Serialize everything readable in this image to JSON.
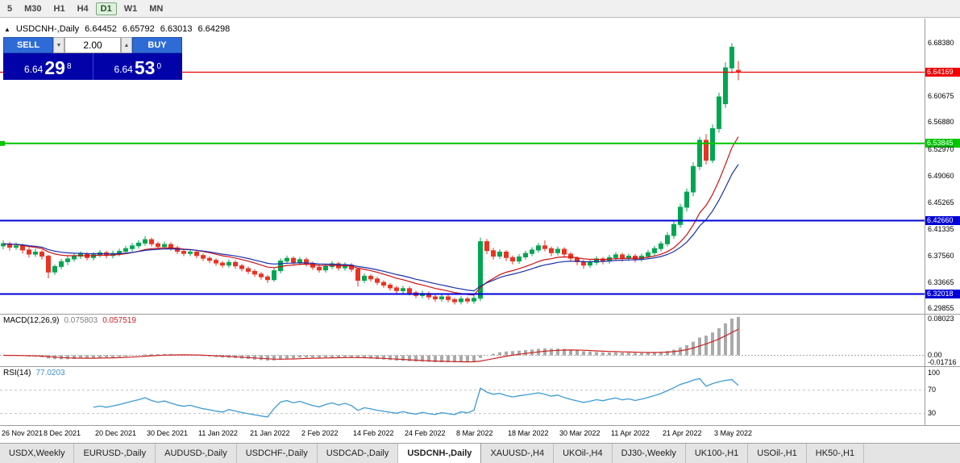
{
  "toolbar": {
    "timeframes": [
      {
        "label": "5",
        "active": false
      },
      {
        "label": "M30",
        "active": false
      },
      {
        "label": "H1",
        "active": false
      },
      {
        "label": "H4",
        "active": false
      },
      {
        "label": "D1",
        "active": true
      },
      {
        "label": "W1",
        "active": false
      },
      {
        "label": "MN",
        "active": false
      }
    ]
  },
  "chart_header": {
    "collapse_icon": "▲",
    "symbol": "USDCNH-,Daily",
    "open": "6.64452",
    "high": "6.65792",
    "low": "6.63013",
    "close": "6.64298"
  },
  "trade_widget": {
    "sell_label": "SELL",
    "buy_label": "BUY",
    "volume": "2.00",
    "step_down_icon": "▼",
    "step_up_icon": "▲",
    "sell_price": {
      "main": "6.64",
      "pips": "29",
      "sup": "8"
    },
    "buy_price": {
      "main": "6.64",
      "pips": "53",
      "sup": "0"
    }
  },
  "price_axis": [
    {
      "text": "6.68380",
      "price": 6.6838,
      "style": "plain"
    },
    {
      "text": "6.64169",
      "price": 6.64169,
      "style": "red"
    },
    {
      "text": "6.60675",
      "price": 6.60675,
      "style": "plain"
    },
    {
      "text": "6.56880",
      "price": 6.5688,
      "style": "plain"
    },
    {
      "text": "6.53845",
      "price": 6.53845,
      "style": "green"
    },
    {
      "text": "6.52970",
      "price": 6.5297,
      "style": "plain"
    },
    {
      "text": "6.49060",
      "price": 6.4906,
      "style": "plain"
    },
    {
      "text": "6.45265",
      "price": 6.45265,
      "style": "plain"
    },
    {
      "text": "6.42660",
      "price": 6.4266,
      "style": "blue"
    },
    {
      "text": "6.41335",
      "price": 6.41335,
      "style": "plain"
    },
    {
      "text": "6.37560",
      "price": 6.3756,
      "style": "plain"
    },
    {
      "text": "6.33665",
      "price": 6.33665,
      "style": "plain"
    },
    {
      "text": "6.32018",
      "price": 6.32018,
      "style": "blue"
    },
    {
      "text": "6.29855",
      "price": 6.29855,
      "style": "plain"
    }
  ],
  "hlines": [
    {
      "price": 6.64169,
      "color": "#f00000",
      "width": 1.2
    },
    {
      "price": 6.53845,
      "color": "#00c400",
      "width": 2
    },
    {
      "price": 6.4266,
      "color": "#0000d8",
      "width": 2
    },
    {
      "price": 6.32018,
      "color": "#0000d8",
      "width": 2
    }
  ],
  "indicators": {
    "macd": {
      "name": "MACD(12,26,9)",
      "value1": "0.075803",
      "value2": "0.057519",
      "axis_labels": [
        {
          "text": "0.08023",
          "value": 0.08023
        },
        {
          "text": "0.00",
          "value": 0
        },
        {
          "text": "-0.01716",
          "value": -0.01716
        }
      ],
      "fast": 12,
      "slow": 26,
      "signal": 9,
      "histogram_color": "#aaaaaa",
      "signal_color": "#cc2222"
    },
    "rsi": {
      "name": "RSI(14)",
      "value": "77.0203",
      "period": 14,
      "axis_labels": [
        {
          "text": "100",
          "value": 100
        },
        {
          "text": "70",
          "value": 70
        },
        {
          "text": "30",
          "value": 30
        }
      ],
      "levels": [
        70,
        30
      ],
      "line_color": "#3d9bd5"
    }
  },
  "time_axis": {
    "labels": [
      "26 Nov 2021",
      "8 Dec 2021",
      "20 Dec 2021",
      "30 Dec 2021",
      "11 Jan 2022",
      "21 Jan 2022",
      "2 Feb 2022",
      "14 Feb 2022",
      "24 Feb 2022",
      "8 Mar 2022",
      "18 Mar 2022",
      "30 Mar 2022",
      "11 Apr 2022",
      "21 Apr 2022",
      "3 May 2022"
    ],
    "first_candle_index": 2,
    "candle_step": 8
  },
  "tabs": [
    {
      "label": "USDX,Weekly",
      "active": false
    },
    {
      "label": "EURUSD-,Daily",
      "active": false
    },
    {
      "label": "AUDUSD-,Daily",
      "active": false
    },
    {
      "label": "USDCHF-,Daily",
      "active": false
    },
    {
      "label": "USDCAD-,Daily",
      "active": false
    },
    {
      "label": "USDCNH-,Daily",
      "active": true
    },
    {
      "label": "XAUUSD-,H4",
      "active": false
    },
    {
      "label": "UKOil-,H4",
      "active": false
    },
    {
      "label": "DJ30-,Weekly",
      "active": false
    },
    {
      "label": "UK100-,H1",
      "active": false
    },
    {
      "label": "USOil-,H1",
      "active": false
    },
    {
      "label": "HK50-,H1",
      "active": false
    }
  ],
  "chart_data": {
    "type": "candlestick",
    "title": "USDCNH-,Daily",
    "ohlc_display": [
      6.64452,
      6.65792,
      6.63013,
      6.64298
    ],
    "price_range": [
      6.2915,
      6.7195
    ],
    "up_color": "#00a651",
    "down_color": "#ea3323",
    "ma_fast": {
      "period": 13,
      "color": "#cc1111"
    },
    "ma_slow": {
      "period": 20,
      "color": "#1b2fae"
    },
    "candles": [
      [
        6.39,
        6.398,
        6.385,
        6.393
      ],
      [
        6.393,
        6.396,
        6.383,
        6.388
      ],
      [
        6.388,
        6.395,
        6.384,
        6.39
      ],
      [
        6.39,
        6.393,
        6.379,
        6.384
      ],
      [
        6.384,
        6.388,
        6.373,
        6.378
      ],
      [
        6.378,
        6.386,
        6.374,
        6.381
      ],
      [
        6.381,
        6.384,
        6.37,
        6.375
      ],
      [
        6.375,
        6.377,
        6.343,
        6.352
      ],
      [
        6.352,
        6.363,
        6.348,
        6.36
      ],
      [
        6.36,
        6.371,
        6.356,
        6.367
      ],
      [
        6.367,
        6.375,
        6.362,
        6.371
      ],
      [
        6.371,
        6.379,
        6.367,
        6.375
      ],
      [
        6.375,
        6.382,
        6.371,
        6.378
      ],
      [
        6.378,
        6.381,
        6.369,
        6.373
      ],
      [
        6.373,
        6.381,
        6.369,
        6.377
      ],
      [
        6.377,
        6.384,
        6.373,
        6.38
      ],
      [
        6.38,
        6.383,
        6.372,
        6.376
      ],
      [
        6.376,
        6.383,
        6.372,
        6.379
      ],
      [
        6.379,
        6.386,
        6.375,
        6.382
      ],
      [
        6.382,
        6.39,
        6.378,
        6.386
      ],
      [
        6.386,
        6.394,
        6.382,
        6.39
      ],
      [
        6.39,
        6.398,
        6.386,
        6.394
      ],
      [
        6.394,
        6.404,
        6.39,
        6.399
      ],
      [
        6.399,
        6.402,
        6.389,
        6.393
      ],
      [
        6.393,
        6.396,
        6.385,
        6.389
      ],
      [
        6.389,
        6.396,
        6.385,
        6.392
      ],
      [
        6.392,
        6.395,
        6.383,
        6.387
      ],
      [
        6.387,
        6.39,
        6.378,
        6.382
      ],
      [
        6.382,
        6.386,
        6.375,
        6.379
      ],
      [
        6.379,
        6.385,
        6.375,
        6.381
      ],
      [
        6.381,
        6.384,
        6.372,
        6.376
      ],
      [
        6.376,
        6.379,
        6.368,
        6.372
      ],
      [
        6.372,
        6.375,
        6.365,
        6.369
      ],
      [
        6.369,
        6.372,
        6.361,
        6.365
      ],
      [
        6.365,
        6.368,
        6.358,
        6.362
      ],
      [
        6.362,
        6.37,
        6.358,
        6.366
      ],
      [
        6.366,
        6.369,
        6.357,
        6.361
      ],
      [
        6.361,
        6.364,
        6.353,
        6.357
      ],
      [
        6.357,
        6.36,
        6.349,
        6.353
      ],
      [
        6.353,
        6.356,
        6.345,
        6.349
      ],
      [
        6.349,
        6.352,
        6.341,
        6.345
      ],
      [
        6.345,
        6.348,
        6.336,
        6.341
      ],
      [
        6.341,
        6.358,
        6.338,
        6.354
      ],
      [
        6.354,
        6.372,
        6.35,
        6.368
      ],
      [
        6.368,
        6.376,
        6.364,
        6.372
      ],
      [
        6.372,
        6.375,
        6.362,
        6.366
      ],
      [
        6.366,
        6.374,
        6.362,
        6.37
      ],
      [
        6.37,
        6.373,
        6.36,
        6.364
      ],
      [
        6.364,
        6.367,
        6.355,
        6.359
      ],
      [
        6.359,
        6.363,
        6.351,
        6.355
      ],
      [
        6.355,
        6.364,
        6.351,
        6.36
      ],
      [
        6.36,
        6.368,
        6.356,
        6.364
      ],
      [
        6.364,
        6.367,
        6.354,
        6.358
      ],
      [
        6.358,
        6.366,
        6.354,
        6.362
      ],
      [
        6.362,
        6.365,
        6.352,
        6.356
      ],
      [
        6.356,
        6.358,
        6.331,
        6.34
      ],
      [
        6.34,
        6.35,
        6.336,
        6.346
      ],
      [
        6.346,
        6.349,
        6.338,
        6.342
      ],
      [
        6.342,
        6.345,
        6.333,
        6.337
      ],
      [
        6.337,
        6.34,
        6.329,
        6.333
      ],
      [
        6.333,
        6.336,
        6.325,
        6.329
      ],
      [
        6.329,
        6.332,
        6.321,
        6.325
      ],
      [
        6.325,
        6.332,
        6.321,
        6.328
      ],
      [
        6.328,
        6.331,
        6.318,
        6.322
      ],
      [
        6.322,
        6.325,
        6.314,
        6.318
      ],
      [
        6.318,
        6.325,
        6.314,
        6.321
      ],
      [
        6.321,
        6.324,
        6.312,
        6.316
      ],
      [
        6.316,
        6.319,
        6.309,
        6.313
      ],
      [
        6.313,
        6.32,
        6.309,
        6.316
      ],
      [
        6.316,
        6.319,
        6.308,
        6.312
      ],
      [
        6.312,
        6.315,
        6.305,
        6.309
      ],
      [
        6.309,
        6.317,
        6.305,
        6.313
      ],
      [
        6.313,
        6.316,
        6.306,
        6.31
      ],
      [
        6.31,
        6.318,
        6.306,
        6.314
      ],
      [
        6.314,
        6.402,
        6.31,
        6.396
      ],
      [
        6.396,
        6.4,
        6.378,
        6.383
      ],
      [
        6.383,
        6.387,
        6.37,
        6.375
      ],
      [
        6.375,
        6.385,
        6.371,
        6.381
      ],
      [
        6.381,
        6.384,
        6.368,
        6.373
      ],
      [
        6.373,
        6.376,
        6.363,
        6.368
      ],
      [
        6.368,
        6.378,
        6.364,
        6.374
      ],
      [
        6.374,
        6.383,
        6.37,
        6.379
      ],
      [
        6.379,
        6.388,
        6.375,
        6.384
      ],
      [
        6.384,
        6.394,
        6.38,
        6.39
      ],
      [
        6.39,
        6.398,
        6.382,
        6.386
      ],
      [
        6.386,
        6.389,
        6.375,
        6.38
      ],
      [
        6.38,
        6.389,
        6.376,
        6.385
      ],
      [
        6.385,
        6.388,
        6.373,
        6.378
      ],
      [
        6.378,
        6.381,
        6.367,
        6.372
      ],
      [
        6.372,
        6.375,
        6.362,
        6.367
      ],
      [
        6.367,
        6.37,
        6.357,
        6.362
      ],
      [
        6.362,
        6.37,
        6.358,
        6.366
      ],
      [
        6.366,
        6.375,
        6.362,
        6.371
      ],
      [
        6.371,
        6.374,
        6.363,
        6.368
      ],
      [
        6.368,
        6.377,
        6.364,
        6.373
      ],
      [
        6.373,
        6.381,
        6.369,
        6.377
      ],
      [
        6.377,
        6.38,
        6.367,
        6.372
      ],
      [
        6.372,
        6.379,
        6.368,
        6.375
      ],
      [
        6.375,
        6.378,
        6.366,
        6.371
      ],
      [
        6.371,
        6.379,
        6.367,
        6.375
      ],
      [
        6.375,
        6.384,
        6.371,
        6.38
      ],
      [
        6.38,
        6.39,
        6.376,
        6.386
      ],
      [
        6.386,
        6.397,
        6.382,
        6.393
      ],
      [
        6.393,
        6.41,
        6.389,
        6.405
      ],
      [
        6.405,
        6.426,
        6.4,
        6.421
      ],
      [
        6.421,
        6.451,
        6.416,
        6.446
      ],
      [
        6.446,
        6.473,
        6.44,
        6.468
      ],
      [
        6.468,
        6.511,
        6.462,
        6.505
      ],
      [
        6.505,
        6.548,
        6.5,
        6.543
      ],
      [
        6.543,
        6.552,
        6.508,
        6.514
      ],
      [
        6.514,
        6.566,
        6.51,
        6.56
      ],
      [
        6.56,
        6.612,
        6.554,
        6.606
      ],
      [
        6.596,
        6.656,
        6.59,
        6.648
      ],
      [
        6.648,
        6.6838,
        6.64,
        6.678
      ],
      [
        6.6445,
        6.6579,
        6.6301,
        6.643
      ]
    ]
  }
}
